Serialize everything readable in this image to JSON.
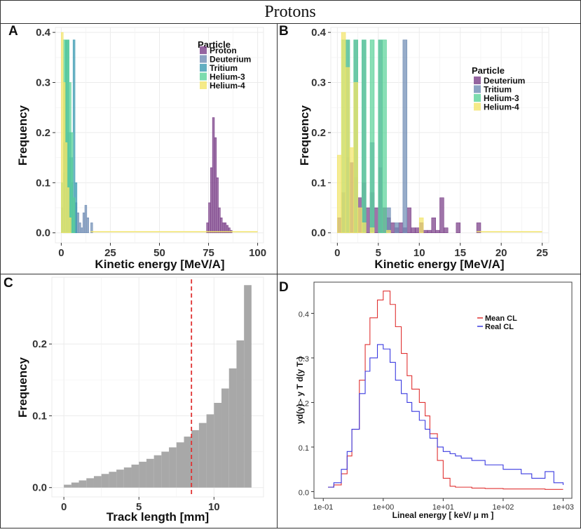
{
  "figure_title": "Protons",
  "chart_data": [
    {
      "id": "A",
      "panel_label": "A",
      "type": "histogram",
      "xlabel": "Kinetic energy [MeV/A]",
      "ylabel": "Frequency",
      "xlim": [
        -3,
        103
      ],
      "ylim": [
        -0.02,
        0.41
      ],
      "xticks": [
        0,
        25,
        50,
        75,
        100
      ],
      "yticks": [
        0.0,
        0.1,
        0.2,
        0.3,
        0.4
      ],
      "ytick_labels": [
        "0.0",
        "0.1",
        "0.2",
        "0.3",
        "0.4"
      ],
      "legend_title": "Particle",
      "legend_position": "top-right",
      "bin_width": 1,
      "series": [
        {
          "name": "Proton",
          "color": "#7a3f88",
          "x": [
            74,
            75,
            76,
            77,
            78,
            79,
            80,
            81,
            82,
            83,
            84,
            85,
            86
          ],
          "values": [
            0.02,
            0.06,
            0.13,
            0.23,
            0.19,
            0.11,
            0.05,
            0.03,
            0.02,
            0.02,
            0.015,
            0.01,
            0.005
          ]
        },
        {
          "name": "Deuterium",
          "color": "#6f8cb4",
          "x": [
            0,
            1,
            2,
            3,
            4,
            5,
            6,
            7,
            8,
            9,
            10,
            11,
            12,
            13,
            15
          ],
          "values": [
            0.05,
            0.18,
            0.385,
            0.2,
            0.15,
            0.1,
            0.07,
            0.06,
            0.04,
            0.02,
            0.01,
            0.04,
            0.055,
            0.03,
            0.02
          ]
        },
        {
          "name": "Tritium",
          "color": "#3b9ab2",
          "x": [
            1,
            2,
            3,
            4,
            5,
            6,
            7
          ],
          "values": [
            0.12,
            0.385,
            0.385,
            0.2,
            0.15,
            0.385,
            0.1
          ]
        },
        {
          "name": "Helium-3",
          "color": "#5bd39a",
          "x": [
            0,
            1,
            2,
            3,
            4,
            5,
            6
          ],
          "values": [
            0.1,
            0.385,
            0.385,
            0.385,
            0.3,
            0.2,
            0.07
          ]
        },
        {
          "name": "Helium-4",
          "color": "#f2e56a",
          "x": [
            0,
            1,
            2,
            3,
            4
          ],
          "values": [
            0.4,
            0.3,
            0.18,
            0.09,
            0.03
          ]
        }
      ]
    },
    {
      "id": "B",
      "panel_label": "B",
      "type": "histogram",
      "xlabel": "Kinetic energy [MeV/A]",
      "ylabel": "Frequency",
      "xlim": [
        -0.8,
        25.8
      ],
      "ylim": [
        -0.02,
        0.41
      ],
      "xticks": [
        0,
        5,
        10,
        15,
        20,
        25
      ],
      "yticks": [
        0.0,
        0.1,
        0.2,
        0.3,
        0.4
      ],
      "ytick_labels": [
        "0.0",
        "0.1",
        "0.2",
        "0.3",
        "0.4"
      ],
      "legend_title": "Particle",
      "legend_position": "right",
      "bin_width": 0.5,
      "series": [
        {
          "name": "Deuterium",
          "color": "#7a3f88",
          "x": [
            0,
            0.5,
            1,
            1.5,
            2,
            2.5,
            3,
            3.5,
            4,
            4.5,
            5,
            5.5,
            6,
            6.5,
            7,
            7.5,
            8,
            8.5,
            9,
            9.5,
            10,
            10.5,
            11,
            11.5,
            12,
            12.5,
            13,
            14.5,
            17
          ],
          "values": [
            0.03,
            0.08,
            0.15,
            0.14,
            0.11,
            0.07,
            0.1,
            0.05,
            0.08,
            0.05,
            0.13,
            0.05,
            0.03,
            0.02,
            0.01,
            0.02,
            0.01,
            0.05,
            0.01,
            0.01,
            0.02,
            0.005,
            0.005,
            0.03,
            0.005,
            0.07,
            0.01,
            0.02,
            0.02
          ]
        },
        {
          "name": "Tritium",
          "color": "#6f8cb4",
          "x": [
            1,
            2,
            3,
            4,
            5,
            6,
            7,
            8
          ],
          "values": [
            0.385,
            0.385,
            0.385,
            0.18,
            0.385,
            0.05,
            0.02,
            0.385
          ]
        },
        {
          "name": "Helium-3",
          "color": "#5bd39a",
          "x": [
            0.5,
            1,
            2,
            3,
            4,
            5,
            5.5
          ],
          "values": [
            0.385,
            0.385,
            0.385,
            0.385,
            0.385,
            0.385,
            0.385
          ]
        },
        {
          "name": "Helium-4",
          "color": "#f2e56a",
          "x": [
            0,
            0.5,
            1,
            1.5,
            2,
            2.5,
            3,
            4,
            6,
            10
          ],
          "values": [
            0.155,
            0.4,
            0.33,
            0.17,
            0.3,
            0.05,
            0.02,
            0.01,
            0.005,
            0.03
          ]
        }
      ]
    },
    {
      "id": "C",
      "panel_label": "C",
      "type": "histogram",
      "xlabel": "Track length [mm]",
      "ylabel": "Frequency",
      "xlim": [
        -0.8,
        13.3
      ],
      "ylim": [
        -0.013,
        0.293
      ],
      "xticks": [
        0,
        5,
        10
      ],
      "yticks": [
        0.0,
        0.1,
        0.2
      ],
      "ytick_labels": [
        "0.0",
        "0.1",
        "0.2"
      ],
      "bin_width": 0.5,
      "bar_color": "#a8a8a8",
      "vline": {
        "x": 8.5,
        "color": "#e03232"
      },
      "x": [
        0.25,
        0.75,
        1.25,
        1.75,
        2.25,
        2.75,
        3.25,
        3.75,
        4.25,
        4.75,
        5.25,
        5.75,
        6.25,
        6.75,
        7.25,
        7.75,
        8.25,
        8.75,
        9.25,
        9.75,
        10.25,
        10.75,
        11.25,
        11.75,
        12.25
      ],
      "values": [
        0.004,
        0.007,
        0.01,
        0.013,
        0.016,
        0.019,
        0.022,
        0.025,
        0.028,
        0.032,
        0.036,
        0.04,
        0.045,
        0.05,
        0.056,
        0.063,
        0.071,
        0.08,
        0.09,
        0.102,
        0.118,
        0.138,
        0.166,
        0.205,
        0.282
      ]
    },
    {
      "id": "D",
      "panel_label": "D",
      "type": "step",
      "xscale": "log",
      "xlabel": "Lineal energy [ keV/ μ m ]",
      "ylabel": "yd(y) - y T d(y T )",
      "xlim": [
        0.07,
        1400
      ],
      "ylim": [
        -0.015,
        0.47
      ],
      "xticks": [
        0.1,
        1,
        10,
        100,
        1000
      ],
      "xtick_labels": [
        "1e-01",
        "1e+00",
        "1e+01",
        "1e+02",
        "1e+03"
      ],
      "yticks": [
        0.0,
        0.1,
        0.2,
        0.3,
        0.4
      ],
      "ytick_labels": [
        "0.0",
        "0.1",
        "0.2",
        "0.3",
        "0.4"
      ],
      "legend_position": "top-right",
      "series": [
        {
          "name": "Mean CL",
          "color": "#e03232",
          "x": [
            0.12,
            0.15,
            0.2,
            0.25,
            0.3,
            0.4,
            0.5,
            0.6,
            0.8,
            1.0,
            1.3,
            1.6,
            2,
            2.5,
            3,
            4,
            5,
            6,
            8,
            10,
            13,
            16,
            20,
            30,
            50,
            100,
            200,
            500,
            1000
          ],
          "y": [
            0.01,
            0.015,
            0.04,
            0.08,
            0.14,
            0.25,
            0.33,
            0.39,
            0.43,
            0.45,
            0.42,
            0.37,
            0.31,
            0.26,
            0.23,
            0.2,
            0.17,
            0.13,
            0.07,
            0.03,
            0.012,
            0.01,
            0.01,
            0.008,
            0.007,
            0.006,
            0.006,
            0.005,
            0.005
          ]
        },
        {
          "name": "Real CL",
          "color": "#3a3ae0",
          "x": [
            0.12,
            0.15,
            0.2,
            0.25,
            0.3,
            0.4,
            0.5,
            0.6,
            0.8,
            1.0,
            1.3,
            1.6,
            2,
            2.5,
            3,
            4,
            5,
            6,
            8,
            10,
            13,
            16,
            20,
            30,
            50,
            100,
            200,
            300,
            500,
            700,
            1000
          ],
          "y": [
            0.01,
            0.02,
            0.05,
            0.09,
            0.14,
            0.22,
            0.27,
            0.3,
            0.33,
            0.32,
            0.29,
            0.25,
            0.22,
            0.2,
            0.18,
            0.16,
            0.14,
            0.12,
            0.1,
            0.09,
            0.085,
            0.08,
            0.075,
            0.07,
            0.06,
            0.05,
            0.04,
            0.03,
            0.045,
            0.02,
            0.015
          ]
        }
      ]
    }
  ]
}
